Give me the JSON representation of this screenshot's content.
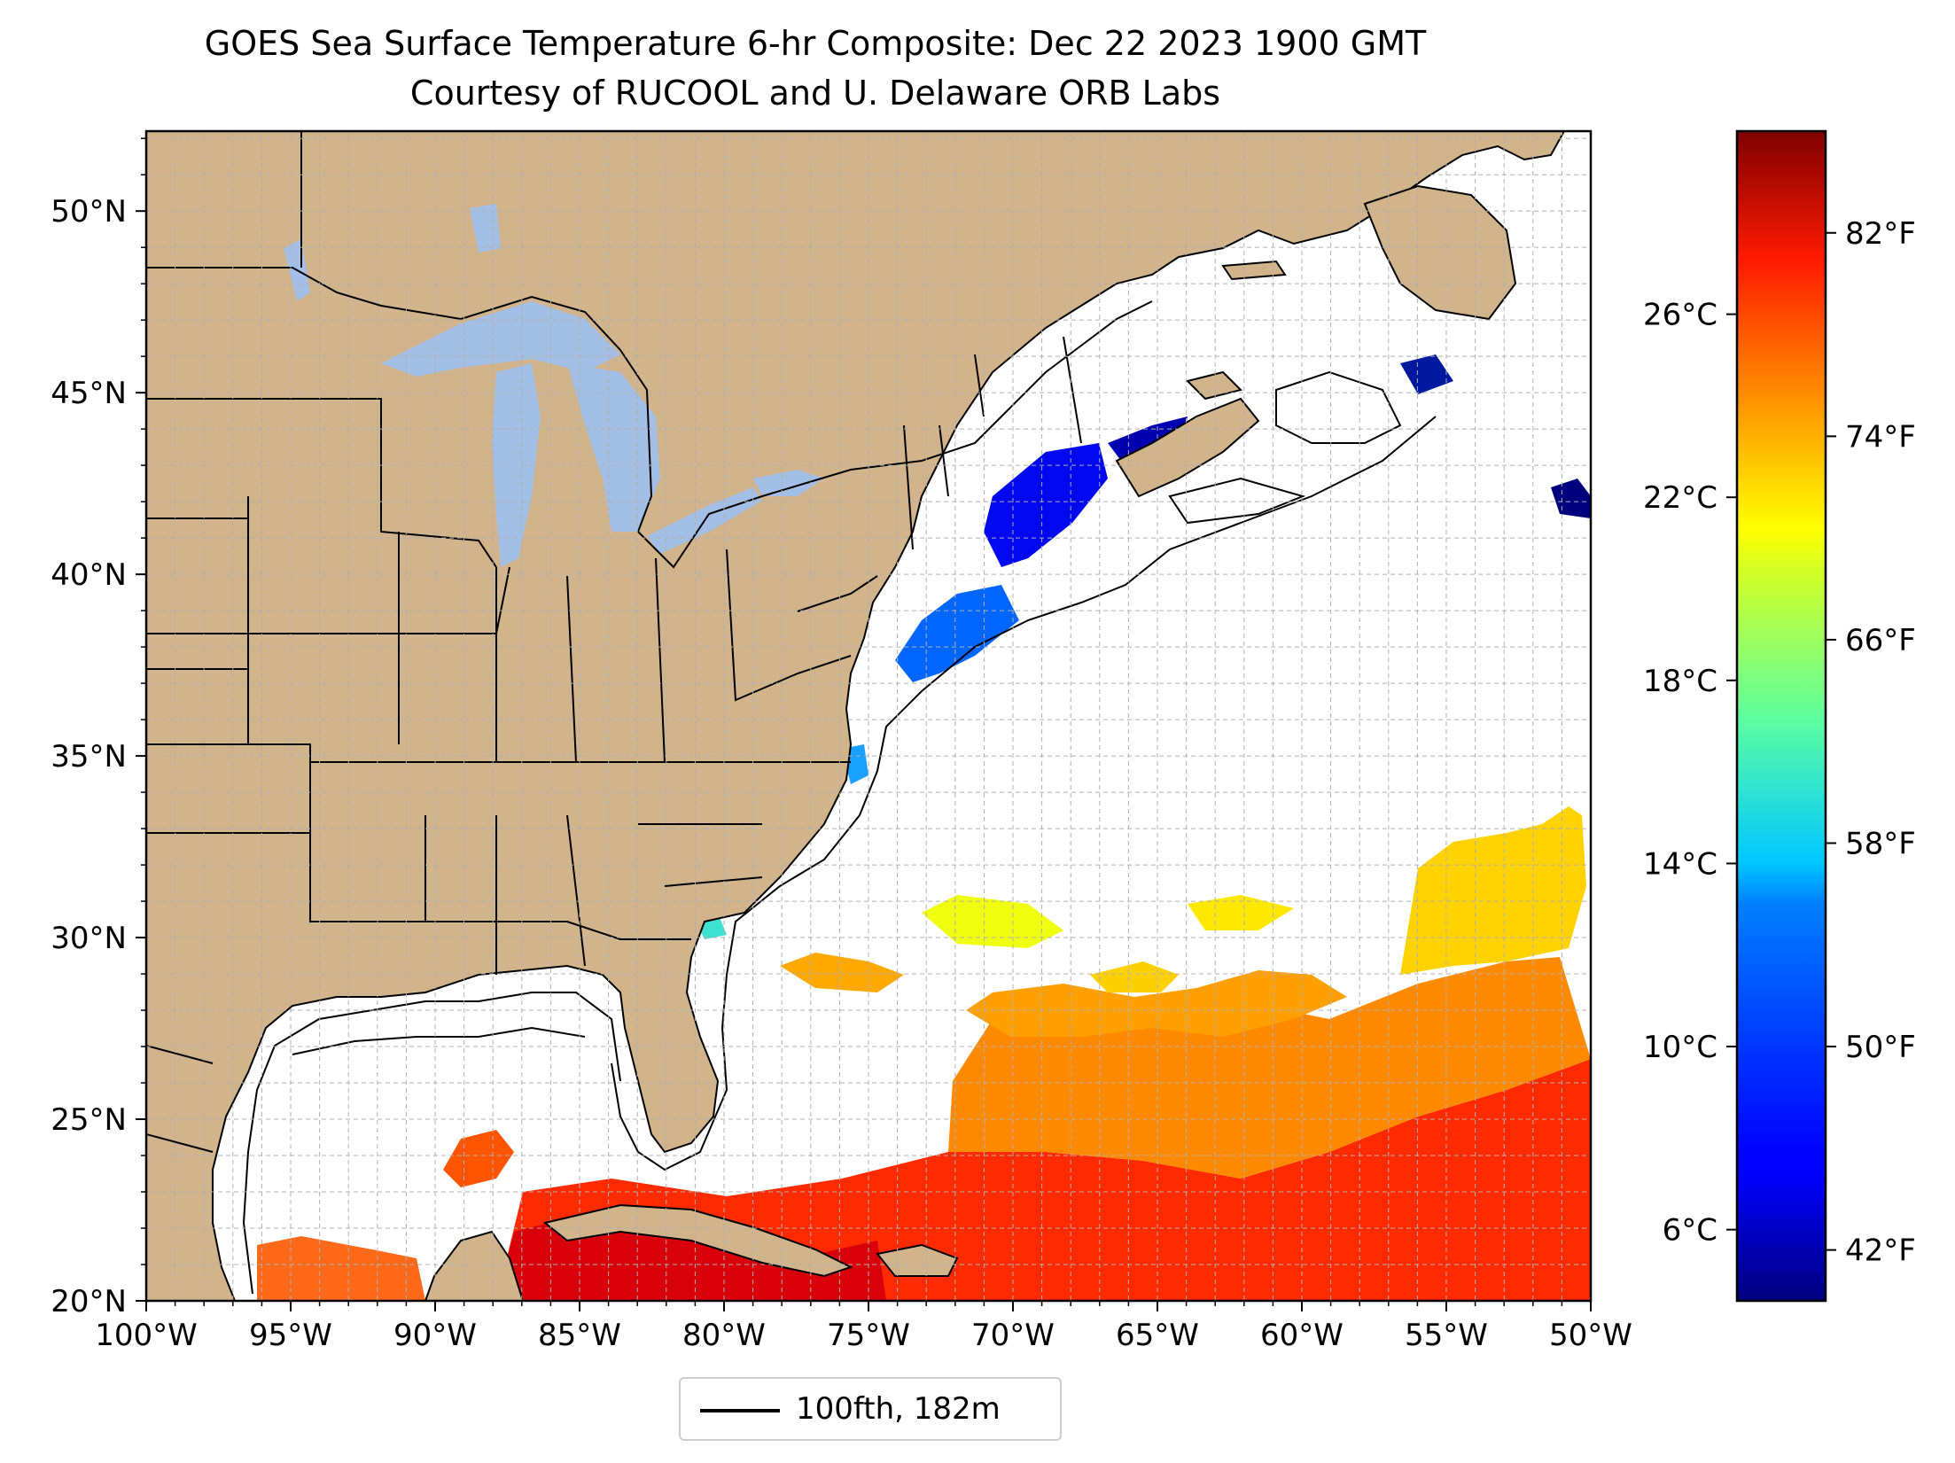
{
  "title": {
    "line1": "GOES Sea Surface Temperature 6-hr Composite: Dec 22 2023 1900 GMT",
    "line2": "Courtesy of RUCOOL and U. Delaware ORB Labs"
  },
  "map": {
    "extent": {
      "lon": [
        -100,
        -50
      ],
      "lat": [
        20,
        52.2
      ]
    },
    "x_ticks": [
      "100°W",
      "95°W",
      "90°W",
      "85°W",
      "80°W",
      "75°W",
      "70°W",
      "65°W",
      "60°W",
      "55°W",
      "50°W"
    ],
    "y_ticks": [
      "20°N",
      "25°N",
      "30°N",
      "35°N",
      "40°N",
      "45°N",
      "50°N"
    ],
    "colors": {
      "land": "#d2b48c",
      "lakes": "#a4bfe6",
      "ocean_nodata": "#ffffff",
      "grid": "#b0b0b0"
    }
  },
  "colorbar": {
    "colormap": "jet",
    "range_f": [
      40,
      86
    ],
    "celsius_ticks": [
      "26°C",
      "22°C",
      "18°C",
      "14°C",
      "10°C",
      "6°C"
    ],
    "fahrenheit_ticks": [
      "82°F",
      "74°F",
      "66°F",
      "58°F",
      "50°F",
      "42°F"
    ]
  },
  "legend": {
    "label": "100fth, 182m",
    "line_color": "#000000"
  }
}
